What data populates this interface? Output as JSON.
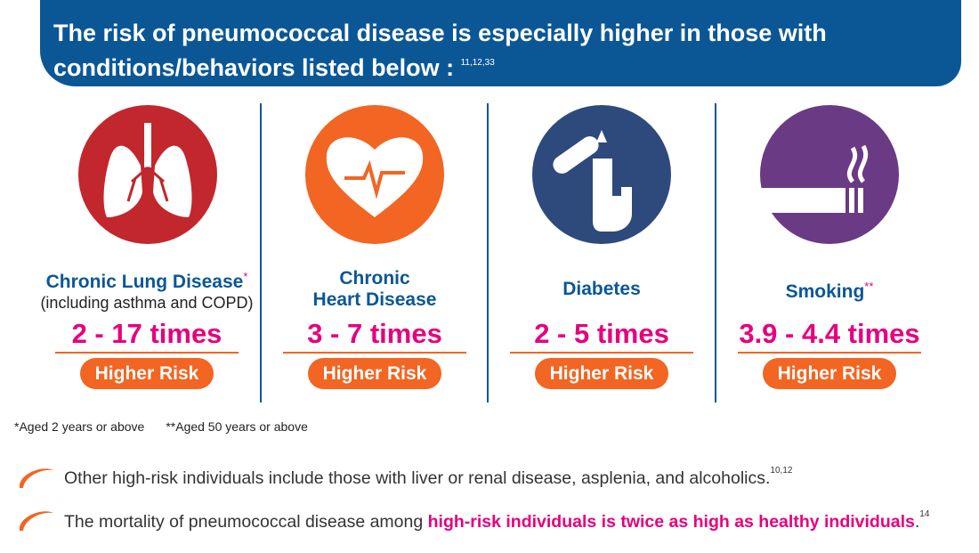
{
  "header": {
    "title_lines": [
      "The risk of pneumococcal disease is especially higher in those with",
      "conditions/behaviors listed below :"
    ],
    "title_sup": "11,12,33"
  },
  "cards": [
    {
      "name_lines": [
        "Chronic Lung Disease"
      ],
      "name_sup": "*",
      "subtitle": "(including asthma and COPD)",
      "risk": "2 - 17 times",
      "badge": "Higher Risk"
    },
    {
      "name_lines": [
        "Chronic",
        "Heart Disease"
      ],
      "risk": "3 - 7 times",
      "badge": "Higher Risk"
    },
    {
      "name_lines": [
        "Diabetes"
      ],
      "risk": "2 - 5 times",
      "badge": "Higher Risk"
    },
    {
      "name_lines": [
        "Smoking"
      ],
      "name_sup": "**",
      "risk": "3.9 - 4.4 times",
      "badge": "Higher Risk"
    }
  ],
  "footnotes": [
    "*Aged 2 years or above",
    "**Aged 50 years or above"
  ],
  "bullets": [
    {
      "text": "Other high-risk individuals include those with liver or renal disease, asplenia, and alcoholics.",
      "sup": "10,12"
    },
    {
      "text": "The mortality of pneumococcal disease among ",
      "highlight": "high-risk individuals is twice as high as healthy individuals",
      "after": ".",
      "sup": "14"
    }
  ]
}
